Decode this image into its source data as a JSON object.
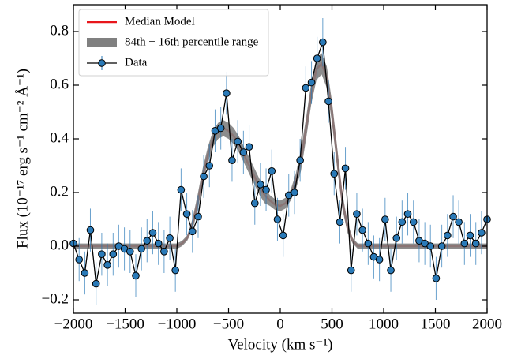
{
  "chart_data": {
    "type": "line",
    "xlabel": "Velocity (km s⁻¹)",
    "ylabel": "Flux (10⁻¹⁷ erg s⁻¹ cm⁻² Å⁻¹)",
    "xlim": [
      -2000,
      2000
    ],
    "ylim": [
      -0.25,
      0.9
    ],
    "xticks": [
      {
        "value": -2000,
        "label": "−2000"
      },
      {
        "value": -1500,
        "label": "−1500"
      },
      {
        "value": -1000,
        "label": "−1000"
      },
      {
        "value": -500,
        "label": "−500"
      },
      0,
      500,
      1000,
      1500,
      2000
    ],
    "yticks": [
      {
        "value": -0.2,
        "label": "−0.2"
      },
      {
        "value": 0,
        "label": "0.0"
      },
      0.2,
      0.4,
      0.6,
      0.8
    ],
    "legend": "upper left",
    "series": [
      {
        "name": "Median Model",
        "color": "#e8161b",
        "x": [
          -2000,
          -1000,
          -950,
          -900,
          -850,
          -800,
          -750,
          -700,
          -650,
          -600,
          -550,
          -500,
          -450,
          -400,
          -350,
          -300,
          -250,
          -200,
          -150,
          -100,
          -50,
          0,
          50,
          100,
          150,
          200,
          250,
          300,
          350,
          400,
          450,
          500,
          550,
          600,
          650,
          700,
          750,
          2000
        ],
        "values": [
          0,
          0.0,
          0.01,
          0.03,
          0.08,
          0.16,
          0.26,
          0.34,
          0.4,
          0.43,
          0.44,
          0.43,
          0.41,
          0.38,
          0.34,
          0.3,
          0.26,
          0.22,
          0.19,
          0.17,
          0.155,
          0.15,
          0.16,
          0.19,
          0.24,
          0.32,
          0.44,
          0.57,
          0.66,
          0.68,
          0.63,
          0.5,
          0.33,
          0.17,
          0.07,
          0.02,
          0.0,
          0
        ]
      },
      {
        "name": "84th − 16th percentile range",
        "color": "#808080",
        "x": [
          -2000,
          -1000,
          -950,
          -900,
          -850,
          -800,
          -750,
          -700,
          -650,
          -600,
          -550,
          -500,
          -450,
          -400,
          -350,
          -300,
          -250,
          -200,
          -150,
          -100,
          -50,
          0,
          50,
          100,
          150,
          200,
          250,
          300,
          350,
          400,
          450,
          500,
          550,
          600,
          650,
          700,
          750,
          2000
        ],
        "upper": [
          0.01,
          0.01,
          0.02,
          0.04,
          0.1,
          0.19,
          0.29,
          0.37,
          0.43,
          0.46,
          0.47,
          0.46,
          0.44,
          0.41,
          0.37,
          0.33,
          0.29,
          0.25,
          0.22,
          0.19,
          0.175,
          0.17,
          0.18,
          0.21,
          0.27,
          0.36,
          0.48,
          0.61,
          0.7,
          0.72,
          0.67,
          0.54,
          0.37,
          0.2,
          0.09,
          0.03,
          0.01,
          0.01
        ],
        "lower": [
          -0.01,
          -0.01,
          0.0,
          0.02,
          0.06,
          0.13,
          0.23,
          0.31,
          0.37,
          0.4,
          0.41,
          0.4,
          0.38,
          0.35,
          0.31,
          0.27,
          0.23,
          0.19,
          0.16,
          0.15,
          0.135,
          0.13,
          0.14,
          0.17,
          0.21,
          0.28,
          0.4,
          0.53,
          0.62,
          0.64,
          0.59,
          0.46,
          0.29,
          0.14,
          0.05,
          0.01,
          -0.01,
          -0.01
        ]
      },
      {
        "name": "Data",
        "color": "#2a7ab8",
        "x": [
          -2000,
          -1945,
          -1890,
          -1836,
          -1781,
          -1726,
          -1671,
          -1616,
          -1562,
          -1507,
          -1452,
          -1397,
          -1342,
          -1288,
          -1233,
          -1178,
          -1123,
          -1068,
          -1014,
          -959,
          -904,
          -849,
          -794,
          -740,
          -685,
          -630,
          -575,
          -520,
          -466,
          -411,
          -356,
          -301,
          -246,
          -192,
          -137,
          -82,
          -27,
          28,
          82,
          137,
          192,
          247,
          302,
          356,
          411,
          466,
          521,
          576,
          630,
          685,
          740,
          795,
          850,
          904,
          959,
          1014,
          1069,
          1124,
          1178,
          1233,
          1288,
          1343,
          1398,
          1452,
          1507,
          1562,
          1617,
          1672,
          1726,
          1781,
          1836,
          1891,
          1946,
          2000
        ],
        "values": [
          0.01,
          -0.05,
          -0.1,
          0.06,
          -0.14,
          -0.03,
          -0.07,
          -0.03,
          0.0,
          -0.01,
          -0.02,
          -0.11,
          -0.01,
          0.02,
          0.05,
          0.01,
          -0.02,
          0.03,
          -0.09,
          0.21,
          0.12,
          0.055,
          0.11,
          0.26,
          0.3,
          0.43,
          0.44,
          0.57,
          0.32,
          0.39,
          0.35,
          0.37,
          0.16,
          0.23,
          0.21,
          0.28,
          0.1,
          0.04,
          0.19,
          0.2,
          0.32,
          0.59,
          0.61,
          0.7,
          0.76,
          0.54,
          0.27,
          0.09,
          0.29,
          -0.09,
          0.12,
          0.06,
          0.01,
          -0.04,
          -0.05,
          0.1,
          -0.09,
          0.03,
          0.09,
          0.12,
          0.09,
          0.02,
          0.01,
          0.0,
          -0.12,
          0.0,
          0.04,
          0.11,
          0.09,
          0.01,
          0.04,
          0.01,
          0.05,
          0.1
        ],
        "errors": [
          0.08,
          0.08,
          0.08,
          0.08,
          0.08,
          0.08,
          0.08,
          0.08,
          0.08,
          0.08,
          0.08,
          0.08,
          0.08,
          0.08,
          0.08,
          0.08,
          0.08,
          0.08,
          0.08,
          0.08,
          0.08,
          0.08,
          0.08,
          0.08,
          0.08,
          0.08,
          0.08,
          0.08,
          0.08,
          0.08,
          0.08,
          0.08,
          0.08,
          0.08,
          0.08,
          0.08,
          0.08,
          0.08,
          0.08,
          0.08,
          0.08,
          0.08,
          0.08,
          0.08,
          0.09,
          0.08,
          0.08,
          0.08,
          0.08,
          0.08,
          0.08,
          0.08,
          0.08,
          0.08,
          0.08,
          0.08,
          0.08,
          0.08,
          0.08,
          0.08,
          0.08,
          0.08,
          0.08,
          0.08,
          0.08,
          0.08,
          0.08,
          0.08,
          0.08,
          0.08,
          0.08,
          0.08,
          0.08,
          0.08
        ]
      }
    ]
  }
}
